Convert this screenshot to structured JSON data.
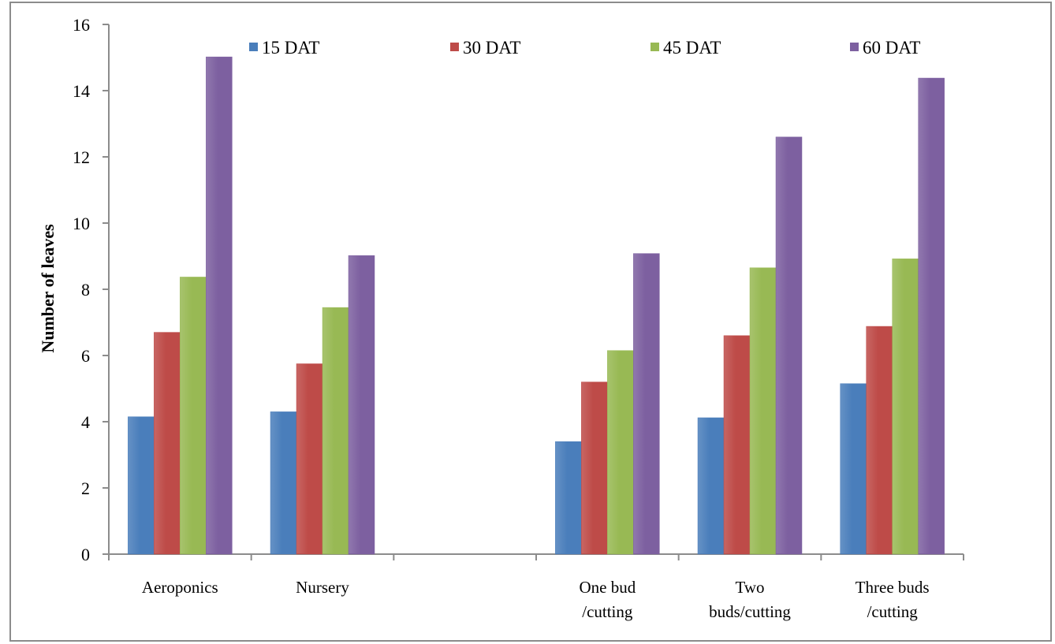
{
  "chart_data": {
    "type": "bar",
    "ylabel": "Number of leaves",
    "xlabel": "",
    "ylim": [
      0,
      16
    ],
    "yticks": [
      0,
      2,
      4,
      6,
      8,
      10,
      12,
      14,
      16
    ],
    "grid": false,
    "legend_position": "top",
    "categories": [
      [
        "Aeroponics"
      ],
      [
        "Nursery"
      ],
      [],
      [
        "One bud",
        "/cutting"
      ],
      [
        "Two",
        "buds/cutting"
      ],
      [
        "Three buds",
        "/cutting"
      ]
    ],
    "series": [
      {
        "name": "15 DAT",
        "color": "#4a7ebb",
        "values": [
          4.15,
          4.3,
          null,
          3.4,
          4.12,
          5.15
        ]
      },
      {
        "name": "30 DAT",
        "color": "#be4b48",
        "values": [
          6.7,
          5.75,
          null,
          5.2,
          6.6,
          6.88
        ]
      },
      {
        "name": "45 DAT",
        "color": "#98b954",
        "values": [
          8.37,
          7.45,
          null,
          6.15,
          8.65,
          8.92
        ]
      },
      {
        "name": "60 DAT",
        "color": "#7d60a0",
        "values": [
          15.02,
          9.02,
          null,
          9.08,
          12.6,
          14.38
        ]
      }
    ]
  }
}
